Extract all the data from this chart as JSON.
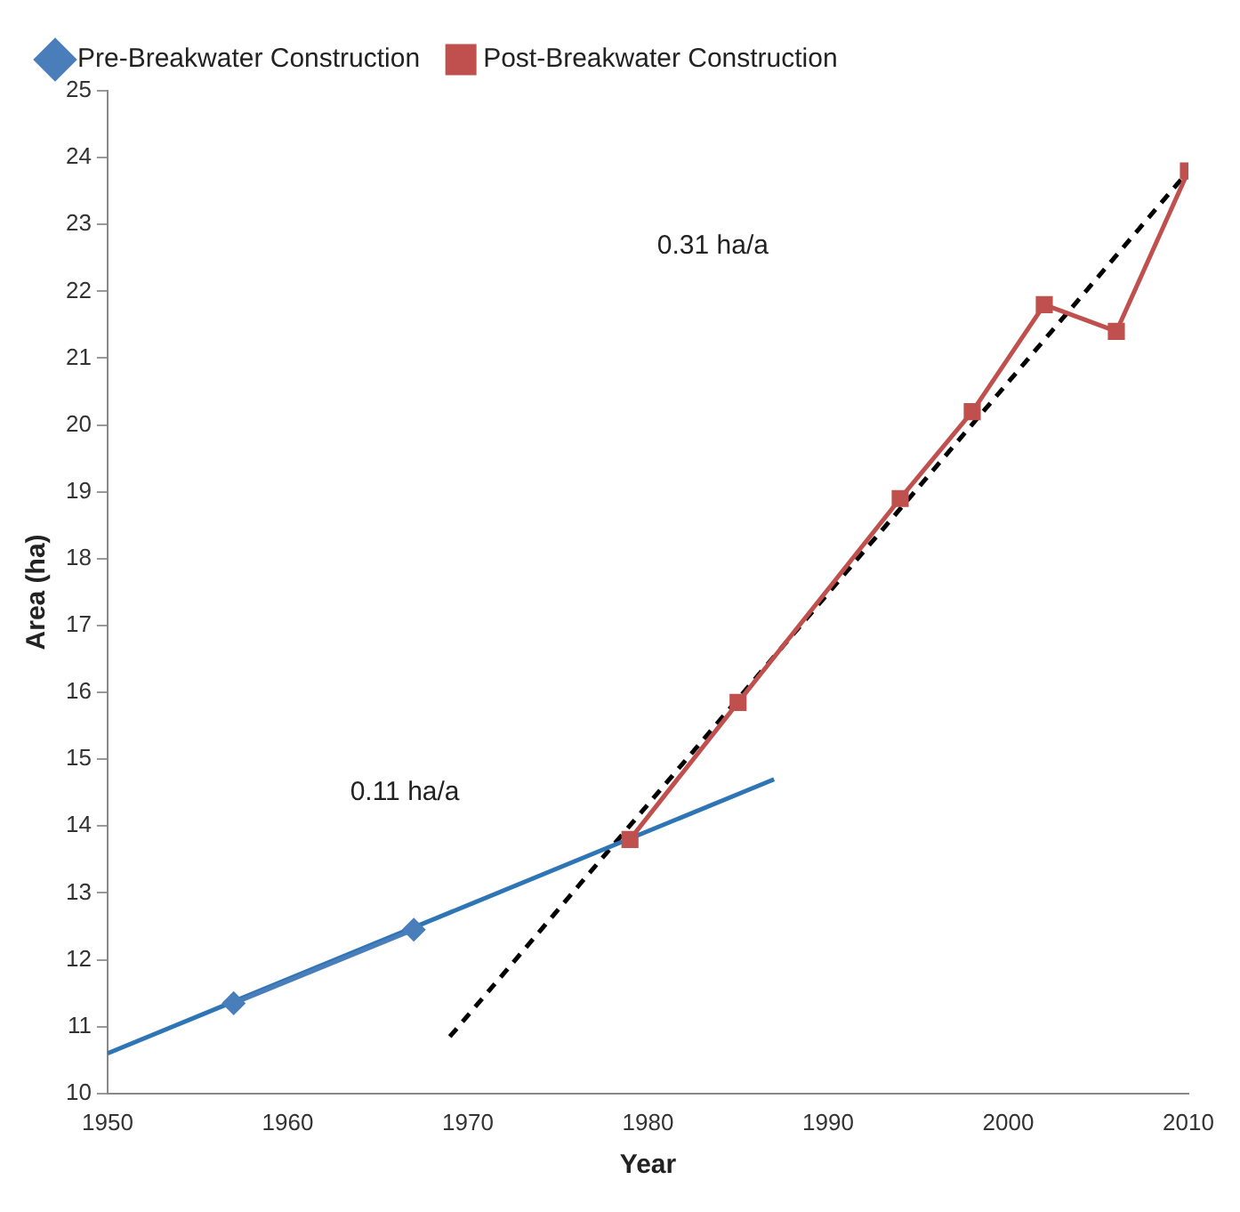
{
  "chart_data": {
    "type": "line",
    "xlabel": "Year",
    "ylabel": "Area (ha)",
    "xlim": [
      1950,
      2010
    ],
    "xticks": [
      1950,
      1960,
      1970,
      1980,
      1990,
      2000,
      2010
    ],
    "ylim": [
      10,
      25
    ],
    "yticks": [
      10,
      11,
      12,
      13,
      14,
      15,
      16,
      17,
      18,
      19,
      20,
      21,
      22,
      23,
      24,
      25
    ],
    "grid": false,
    "legend": "top left",
    "series": [
      {
        "name": "Pre-Breakwater Construction",
        "color": "#4a7ebb",
        "marker": "diamond",
        "x": [
          1957,
          1967
        ],
        "values": [
          11.35,
          12.45
        ]
      },
      {
        "name": "Post-Breakwater Construction",
        "color": "#c0504d",
        "marker": "square",
        "x": [
          1979,
          1985,
          1994,
          1998,
          2002,
          2006,
          2010
        ],
        "values": [
          13.8,
          15.85,
          18.9,
          20.2,
          21.8,
          21.4,
          23.8
        ]
      },
      {
        "color": "#2e75b6",
        "marker": "none",
        "line_style": "solid",
        "x": [
          1950,
          1987
        ],
        "values": [
          10.6,
          14.7
        ]
      },
      {
        "color": "#000000",
        "marker": "none",
        "line_style": "dashed",
        "x": [
          1969,
          2010
        ],
        "values": [
          10.85,
          23.8
        ]
      }
    ],
    "annotations": [
      "0.11 ha/a",
      "0.31 ha/a"
    ]
  }
}
